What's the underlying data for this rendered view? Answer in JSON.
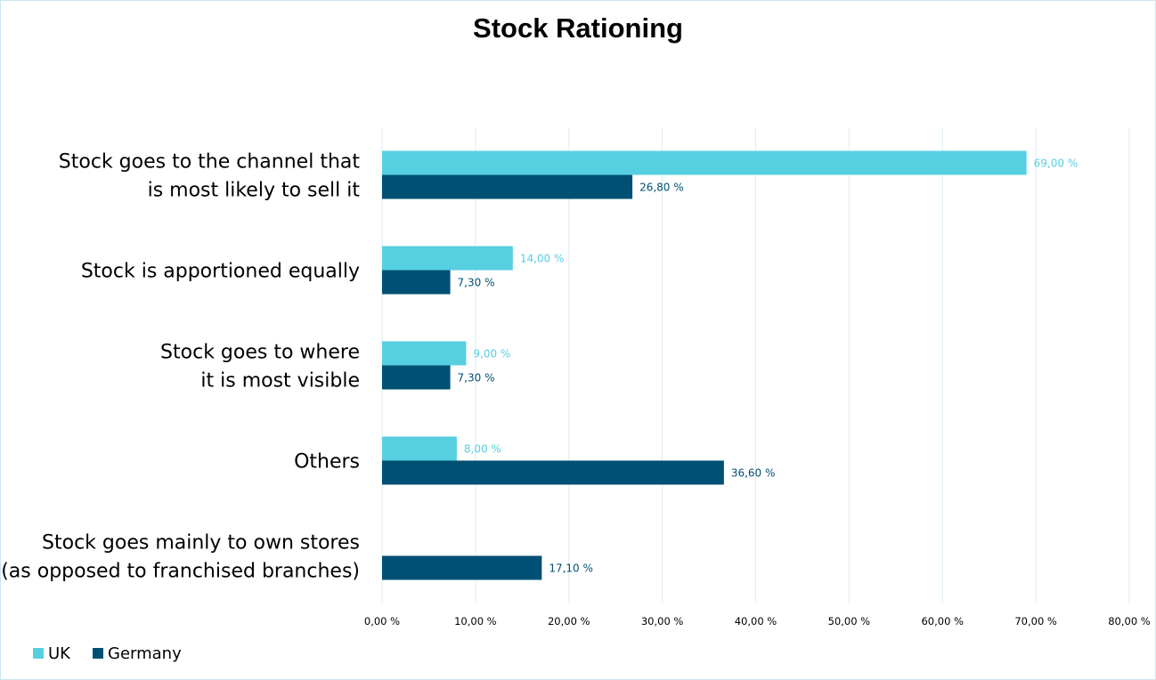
{
  "chart_data": {
    "type": "bar",
    "orientation": "horizontal",
    "title": "Stock Rationing",
    "categories": [
      [
        "Stock goes to the channel that",
        "is most likely to sell it"
      ],
      [
        "Stock is apportioned equally"
      ],
      [
        "Stock goes to where",
        "it is most visible"
      ],
      [
        "Others"
      ],
      [
        "Stock goes mainly to own stores",
        "(as opposed to franchised branches)"
      ]
    ],
    "series": [
      {
        "name": "UK",
        "color": "#56cfe1",
        "values": [
          69.0,
          14.0,
          9.0,
          8.0,
          null
        ],
        "labels": [
          "69,00 %",
          "14,00 %",
          "9,00 %",
          "8,00 %",
          ""
        ]
      },
      {
        "name": "Germany",
        "color": "#005073",
        "values": [
          26.8,
          7.3,
          7.3,
          36.6,
          17.1
        ],
        "labels": [
          "26,80 %",
          "7,30 %",
          "7,30 %",
          "36,60 %",
          "17,10 %"
        ]
      }
    ],
    "xlim": [
      0,
      80
    ],
    "x_ticks": [
      0,
      10,
      20,
      30,
      40,
      50,
      60,
      70,
      80
    ],
    "x_tick_labels": [
      "0,00 %",
      "10,00 %",
      "20,00 %",
      "30,00 %",
      "40,00 %",
      "50,00 %",
      "60,00 %",
      "70,00 %",
      "80,00 %"
    ],
    "grid": true,
    "gridline_color": "#d9eef3",
    "legend_position": "bottom-left"
  }
}
